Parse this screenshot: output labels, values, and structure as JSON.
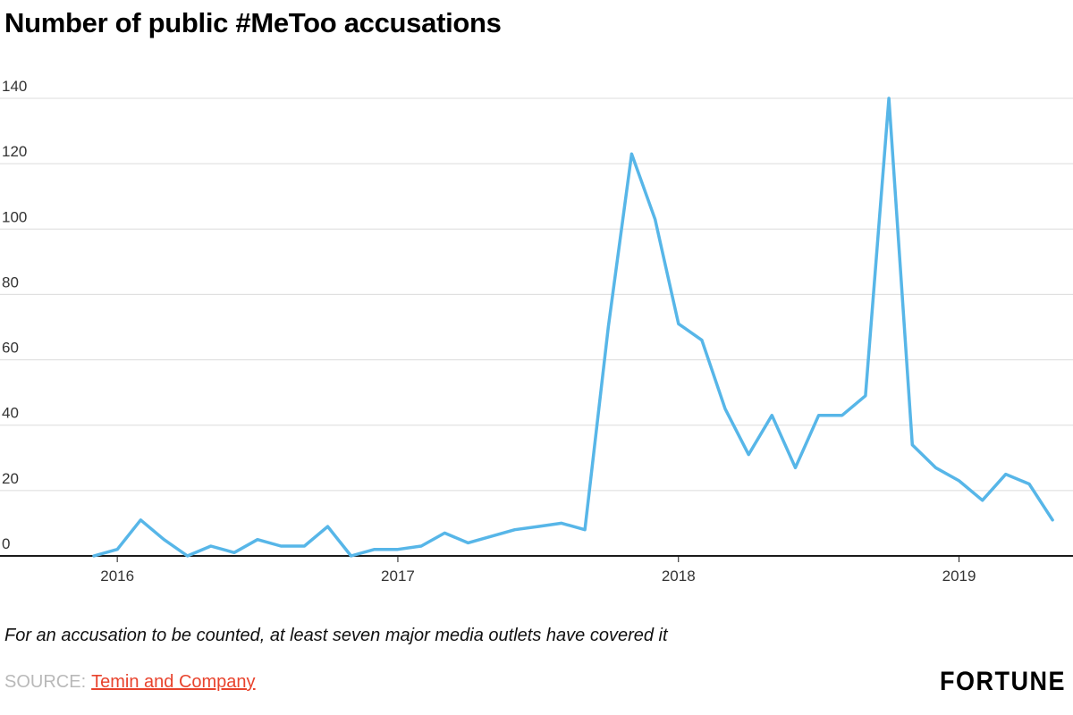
{
  "header": {
    "title": "Number of public #MeToo accusations"
  },
  "footer": {
    "footnote": "For an accusation to be counted, at least seven major media outlets have covered it",
    "source_label": "SOURCE:",
    "source_link_text": "Temin and Company",
    "brand": "FORTUNE"
  },
  "colors": {
    "line": "#57b6e8",
    "grid": "#dcdcdc",
    "axis": "#1a1a1a",
    "tick_label": "#333333",
    "link": "#e8432d",
    "source_label": "#b9b9b9"
  },
  "chart_data": {
    "type": "line",
    "title": "Number of public #MeToo accusations",
    "xlabel": "",
    "ylabel": "",
    "ylim": [
      0,
      140
    ],
    "y_ticks": [
      0,
      20,
      40,
      60,
      80,
      100,
      120,
      140
    ],
    "grid": "horizontal",
    "legend": "none",
    "x_tick_labels": [
      "2016",
      "2017",
      "2018",
      "2019"
    ],
    "x_tick_month_indices": [
      1,
      13,
      25,
      37
    ],
    "months": [
      "2015-12",
      "2016-01",
      "2016-02",
      "2016-03",
      "2016-04",
      "2016-05",
      "2016-06",
      "2016-07",
      "2016-08",
      "2016-09",
      "2016-10",
      "2016-11",
      "2016-12",
      "2017-01",
      "2017-02",
      "2017-03",
      "2017-04",
      "2017-05",
      "2017-06",
      "2017-07",
      "2017-08",
      "2017-09",
      "2017-10",
      "2017-11",
      "2017-12",
      "2018-01",
      "2018-02",
      "2018-03",
      "2018-04",
      "2018-05",
      "2018-06",
      "2018-07",
      "2018-08",
      "2018-09",
      "2018-10",
      "2018-11",
      "2018-12",
      "2019-01",
      "2019-02",
      "2019-03",
      "2019-04",
      "2019-05"
    ],
    "series": [
      {
        "name": "Public #MeToo accusations",
        "values": [
          0,
          2,
          11,
          5,
          0,
          3,
          1,
          5,
          3,
          3,
          9,
          0,
          2,
          2,
          3,
          7,
          4,
          6,
          8,
          9,
          10,
          8,
          70,
          123,
          103,
          71,
          66,
          45,
          31,
          43,
          27,
          43,
          43,
          49,
          140,
          34,
          27,
          23,
          17,
          25,
          22,
          11
        ]
      }
    ]
  }
}
